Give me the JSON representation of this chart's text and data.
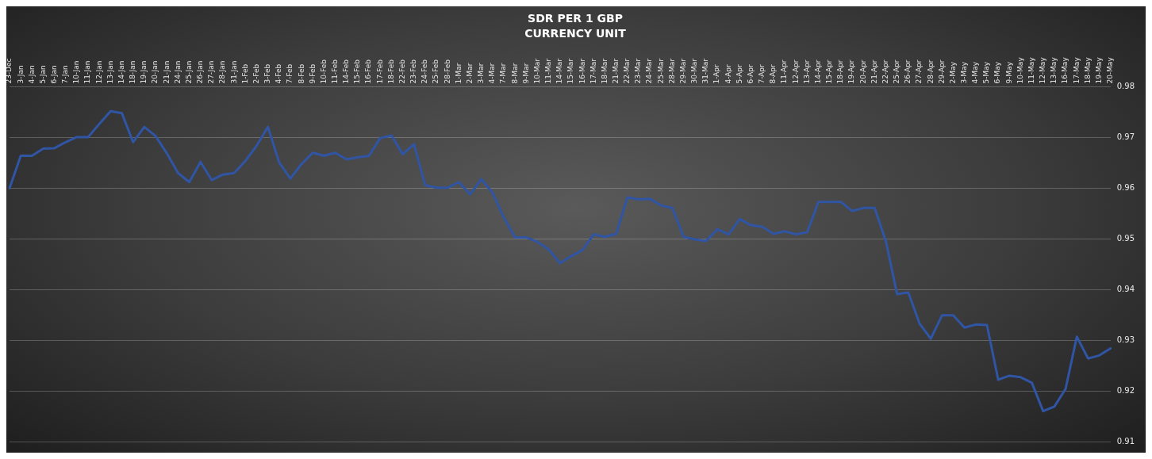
{
  "chart_data": {
    "type": "line",
    "title": "SDR PER 1 GBP",
    "subtitle": "CURRENCY UNIT",
    "categories": [
      "23-Dec",
      "3-Jan",
      "4-Jan",
      "5-Jan",
      "6-Jan",
      "7-Jan",
      "10-Jan",
      "11-Jan",
      "12-Jan",
      "13-Jan",
      "14-Jan",
      "18-Jan",
      "19-Jan",
      "20-Jan",
      "21-Jan",
      "24-Jan",
      "25-Jan",
      "26-Jan",
      "27-Jan",
      "28-Jan",
      "31-Jan",
      "1-Feb",
      "2-Feb",
      "3-Feb",
      "4-Feb",
      "7-Feb",
      "8-Feb",
      "9-Feb",
      "10-Feb",
      "11-Feb",
      "14-Feb",
      "15-Feb",
      "16-Feb",
      "17-Feb",
      "18-Feb",
      "22-Feb",
      "23-Feb",
      "24-Feb",
      "25-Feb",
      "28-Feb",
      "1-Mar",
      "2-Mar",
      "3-Mar",
      "4-Mar",
      "7-Mar",
      "8-Mar",
      "9-Mar",
      "10-Mar",
      "11-Mar",
      "14-Mar",
      "15-Mar",
      "16-Mar",
      "17-Mar",
      "18-Mar",
      "21-Mar",
      "22-Mar",
      "23-Mar",
      "24-Mar",
      "25-Mar",
      "28-Mar",
      "29-Mar",
      "30-Mar",
      "31-Mar",
      "1-Apr",
      "4-Apr",
      "5-Apr",
      "6-Apr",
      "7-Apr",
      "8-Apr",
      "11-Apr",
      "12-Apr",
      "13-Apr",
      "14-Apr",
      "15-Apr",
      "18-Apr",
      "19-Apr",
      "20-Apr",
      "21-Apr",
      "22-Apr",
      "25-Apr",
      "26-Apr",
      "27-Apr",
      "28-Apr",
      "29-Apr",
      "2-May",
      "3-May",
      "4-May",
      "5-May",
      "6-May",
      "9-May",
      "10-May",
      "11-May",
      "12-May",
      "13-May",
      "16-May",
      "17-May",
      "18-May",
      "19-May",
      "20-May"
    ],
    "series": [
      {
        "color": "#2f55a4",
        "values": [
          0.96,
          0.9664,
          0.9664,
          0.9678,
          0.9679,
          0.9691,
          0.9701,
          0.9701,
          0.9727,
          0.9752,
          0.9748,
          0.9691,
          0.9721,
          0.9703,
          0.9669,
          0.963,
          0.9612,
          0.9652,
          0.9616,
          0.9627,
          0.963,
          0.9654,
          0.9684,
          0.9721,
          0.9651,
          0.9619,
          0.9648,
          0.967,
          0.9664,
          0.967,
          0.9657,
          0.9661,
          0.9664,
          0.9699,
          0.9704,
          0.9667,
          0.9687,
          0.9606,
          0.9601,
          0.9601,
          0.9612,
          0.9588,
          0.9618,
          0.9591,
          0.9542,
          0.9503,
          0.9503,
          0.9494,
          0.9479,
          0.9452,
          0.9466,
          0.9478,
          0.9509,
          0.9504,
          0.951,
          0.9582,
          0.9578,
          0.9579,
          0.9566,
          0.9561,
          0.9504,
          0.9499,
          0.9496,
          0.9519,
          0.9509,
          0.9539,
          0.9527,
          0.9524,
          0.951,
          0.9515,
          0.9509,
          0.9513,
          0.9573,
          0.9573,
          0.9573,
          0.9555,
          0.9561,
          0.9561,
          0.9496,
          0.9391,
          0.9394,
          0.9333,
          0.9303,
          0.9349,
          0.9349,
          0.9325,
          0.9331,
          0.933,
          0.9222,
          0.923,
          0.9227,
          0.9216,
          0.916,
          0.9169,
          0.9204,
          0.9307,
          0.9264,
          0.927,
          0.9284
        ]
      }
    ],
    "ylim": [
      0.91,
      0.98
    ],
    "yticks": [
      0.91,
      0.92,
      0.93,
      0.94,
      0.95,
      0.96,
      0.97,
      0.98
    ],
    "grid": "y",
    "legend": false,
    "marker": "none",
    "line_style": "solid"
  }
}
